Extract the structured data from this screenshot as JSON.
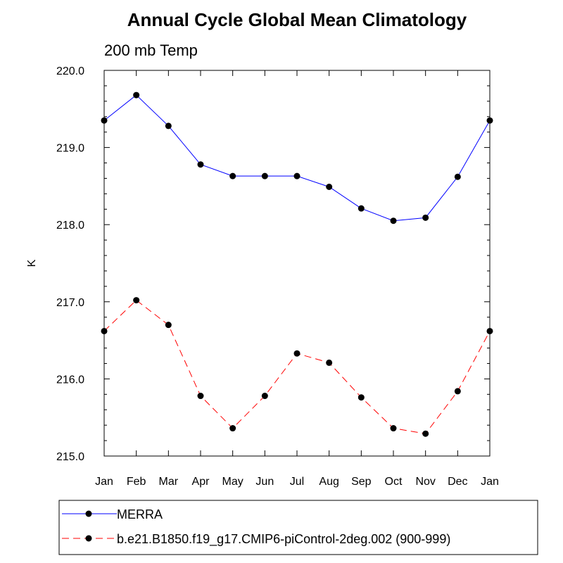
{
  "chart_data": {
    "type": "line",
    "title": "Annual Cycle Global Mean Climatology",
    "subtitle": "200 mb Temp",
    "xlabel": "",
    "ylabel": "K",
    "categories": [
      "Jan",
      "Feb",
      "Mar",
      "Apr",
      "May",
      "Jun",
      "Jul",
      "Aug",
      "Sep",
      "Oct",
      "Nov",
      "Dec",
      "Jan"
    ],
    "ylim": [
      215.0,
      220.0
    ],
    "yticks": [
      215.0,
      216.0,
      217.0,
      218.0,
      219.0,
      220.0
    ],
    "ytick_labels": [
      "215.0",
      "216.0",
      "217.0",
      "218.0",
      "219.0",
      "220.0"
    ],
    "series": [
      {
        "name": "MERRA",
        "color": "#0000ff",
        "dash": "solid",
        "values": [
          219.35,
          219.68,
          219.28,
          218.78,
          218.63,
          218.63,
          218.63,
          218.49,
          218.21,
          218.05,
          218.09,
          218.62,
          219.35
        ]
      },
      {
        "name": "b.e21.B1850.f19_g17.CMIP6-piControl-2deg.002 (900-999)",
        "color": "#ff0000",
        "dash": "dashed",
        "values": [
          216.62,
          217.02,
          216.7,
          215.78,
          215.36,
          215.78,
          216.33,
          216.21,
          215.76,
          215.36,
          215.29,
          215.84,
          216.62
        ]
      }
    ],
    "legend": "bottom"
  }
}
